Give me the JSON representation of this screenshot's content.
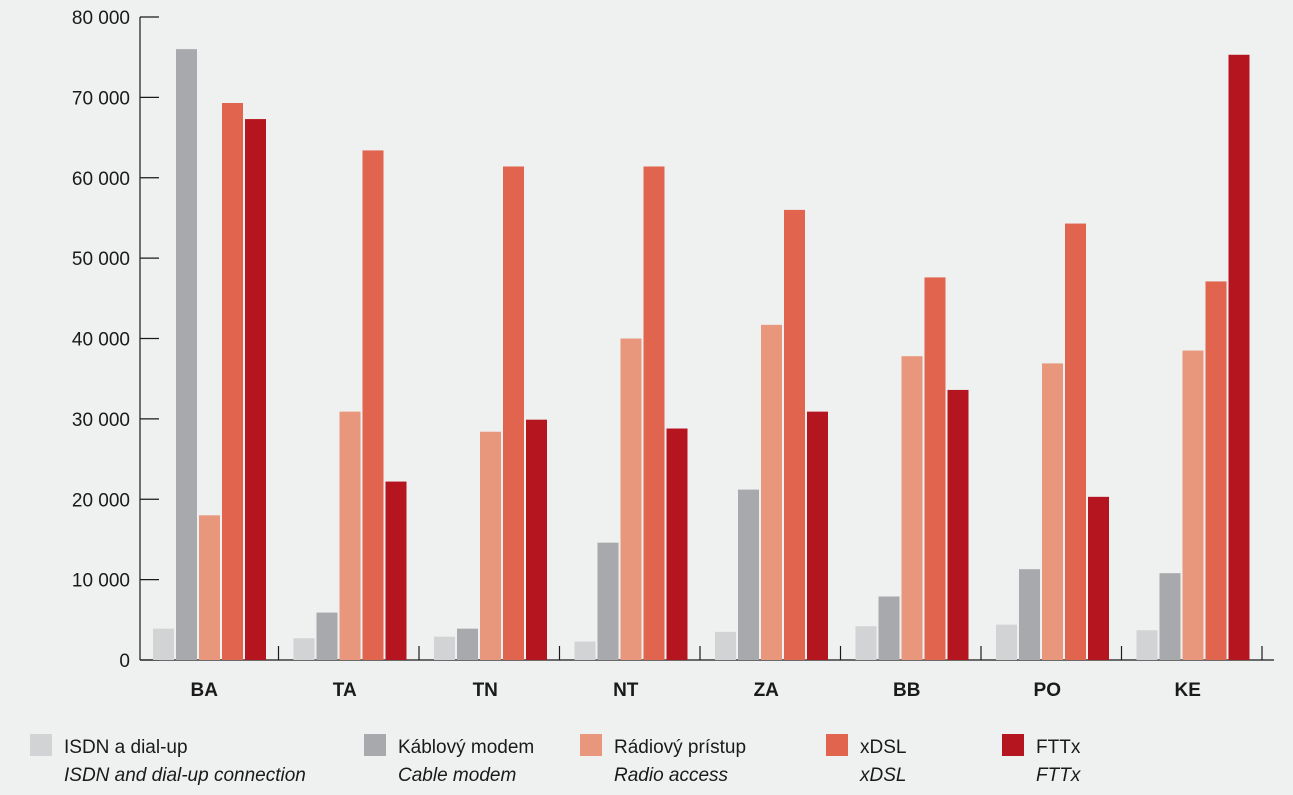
{
  "chart_data": {
    "type": "bar",
    "title": "",
    "xlabel": "",
    "ylabel": "",
    "ylim": [
      0,
      80000
    ],
    "yticks": [
      0,
      10000,
      20000,
      30000,
      40000,
      50000,
      60000,
      70000,
      80000
    ],
    "ytick_labels": [
      "0",
      "10 000",
      "20 000",
      "30 000",
      "40 000",
      "50 000",
      "60 000",
      "70 000",
      "80 000"
    ],
    "categories": [
      "BA",
      "TA",
      "TN",
      "NT",
      "ZA",
      "BB",
      "PO",
      "KE"
    ],
    "legend_position": "bottom",
    "grid": false,
    "series": [
      {
        "name": "ISDN a dial-up",
        "name_en": "ISDN and dial-up connection",
        "color": "#d2d3d4",
        "values": [
          3900,
          2700,
          2900,
          2300,
          3500,
          4200,
          4400,
          3700
        ]
      },
      {
        "name": "Káblový modem",
        "name_en": "Cable modem",
        "color": "#a8a9ac",
        "values": [
          76000,
          5900,
          3900,
          14600,
          21200,
          7900,
          11300,
          10800
        ]
      },
      {
        "name": "Rádiový prístup",
        "name_en": "Radio access",
        "color": "#e8977c",
        "values": [
          18000,
          30900,
          28400,
          40000,
          41700,
          37800,
          36900,
          38500
        ]
      },
      {
        "name": "xDSL",
        "name_en": "xDSL",
        "color": "#e0644e",
        "values": [
          69300,
          63400,
          61400,
          61400,
          56000,
          47600,
          54300,
          47100
        ]
      },
      {
        "name": "FTTx",
        "name_en": "FTTx",
        "color": "#b5151f",
        "values": [
          67300,
          22200,
          29900,
          28800,
          30900,
          33600,
          20300,
          75300
        ]
      }
    ]
  }
}
